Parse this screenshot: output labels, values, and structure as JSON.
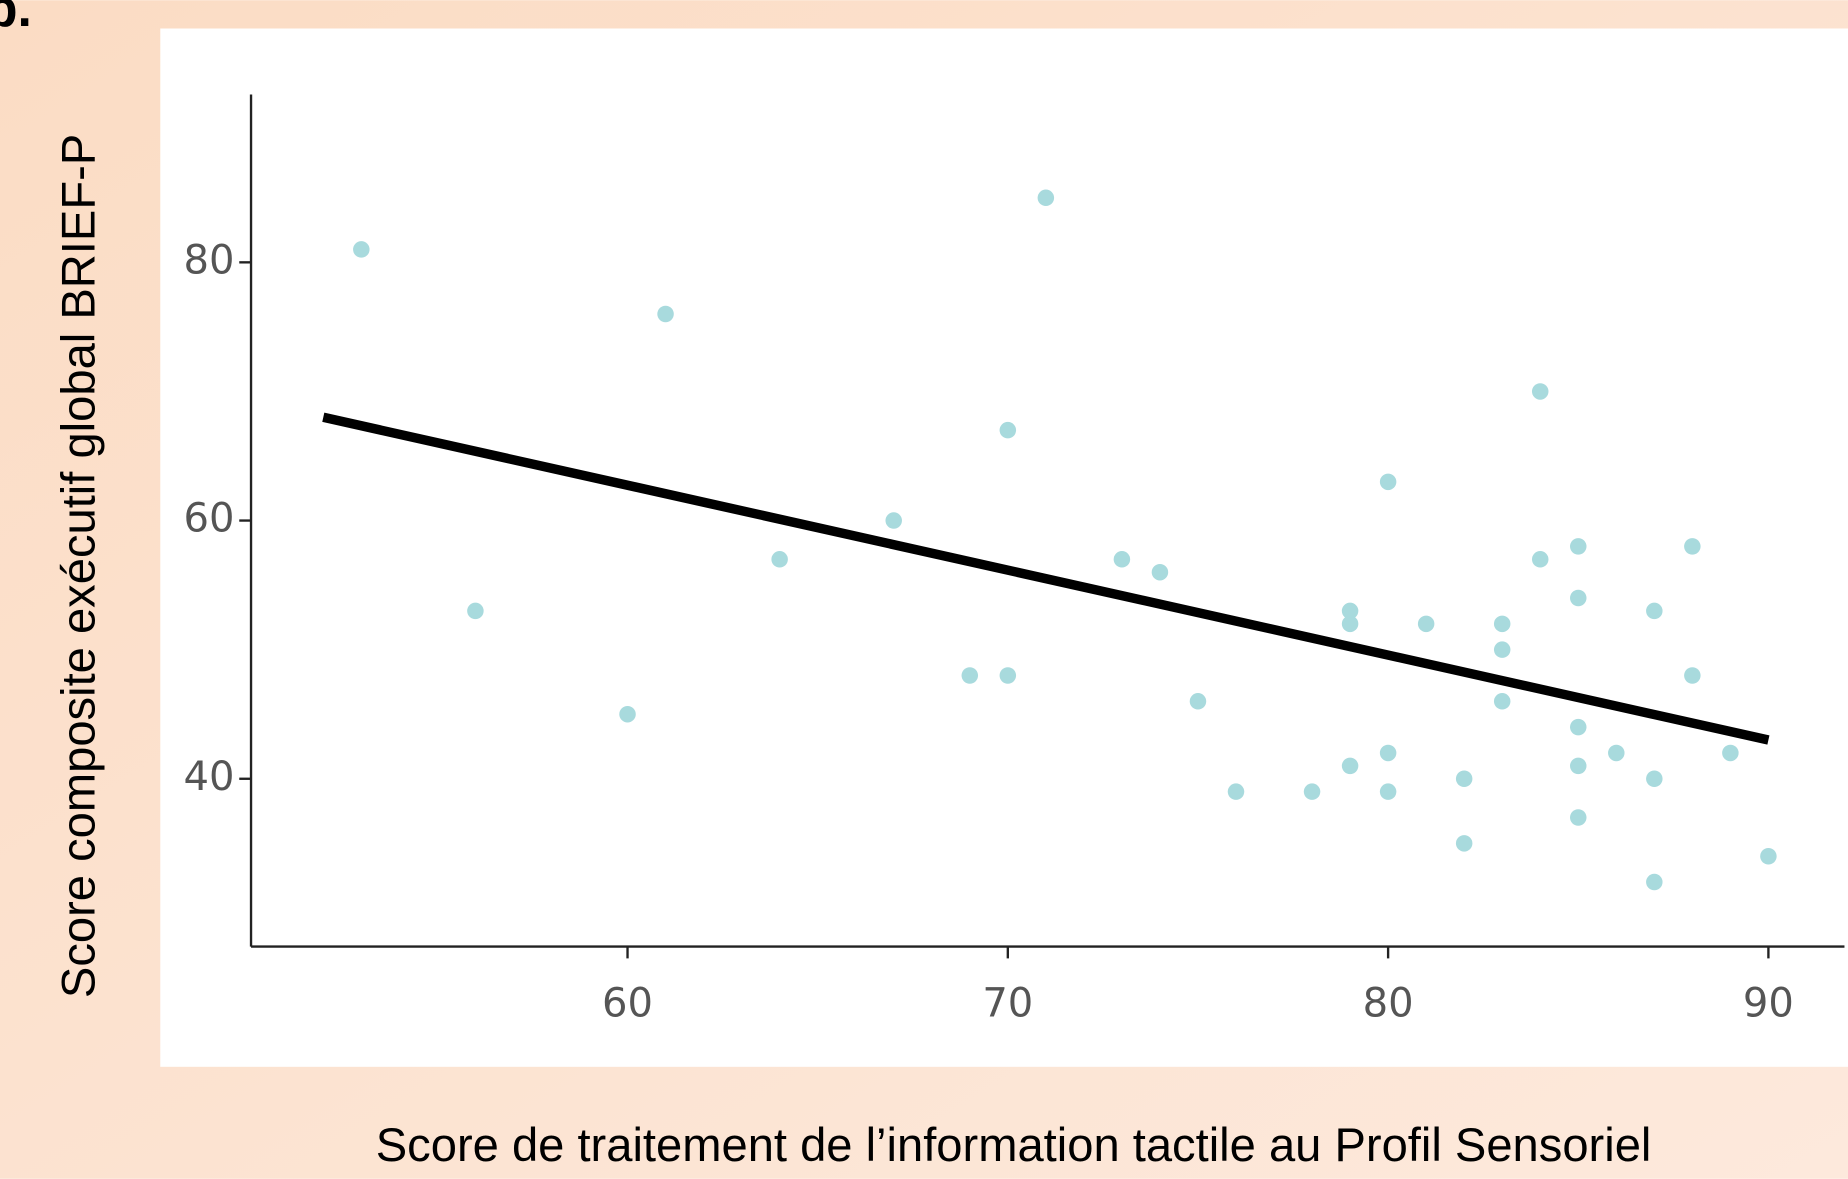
{
  "chart_data": {
    "type": "scatter",
    "panel_label": "b.",
    "xlabel": "Score de traitement de l’information tactile au Profil Sensoriel",
    "ylabel": "Score composite exécutif global BRIEF-P",
    "x": [
      53,
      56,
      60,
      61,
      64,
      67,
      69,
      70,
      70,
      71,
      73,
      74,
      75,
      76,
      78,
      79,
      79,
      79,
      80,
      80,
      80,
      81,
      82,
      82,
      83,
      83,
      83,
      84,
      84,
      85,
      85,
      85,
      85,
      85,
      86,
      87,
      87,
      87,
      88,
      88,
      89,
      90
    ],
    "values": [
      81,
      53,
      45,
      76,
      57,
      60,
      48,
      67,
      48,
      85,
      57,
      56,
      46,
      39,
      39,
      53,
      52,
      41,
      63,
      42,
      39,
      52,
      40,
      35,
      52,
      50,
      46,
      70,
      57,
      58,
      54,
      44,
      41,
      37,
      42,
      53,
      40,
      32,
      58,
      48,
      42,
      34
    ],
    "color": "#a8dadd",
    "trend_line": {
      "x": [
        52,
        90
      ],
      "values": [
        68,
        43
      ],
      "color": "#000000"
    },
    "xlim": [
      50.1,
      92
    ],
    "xticks": [
      60,
      70,
      80,
      90
    ],
    "ylim": [
      27,
      93
    ],
    "yticks": [
      40,
      60,
      80
    ]
  }
}
